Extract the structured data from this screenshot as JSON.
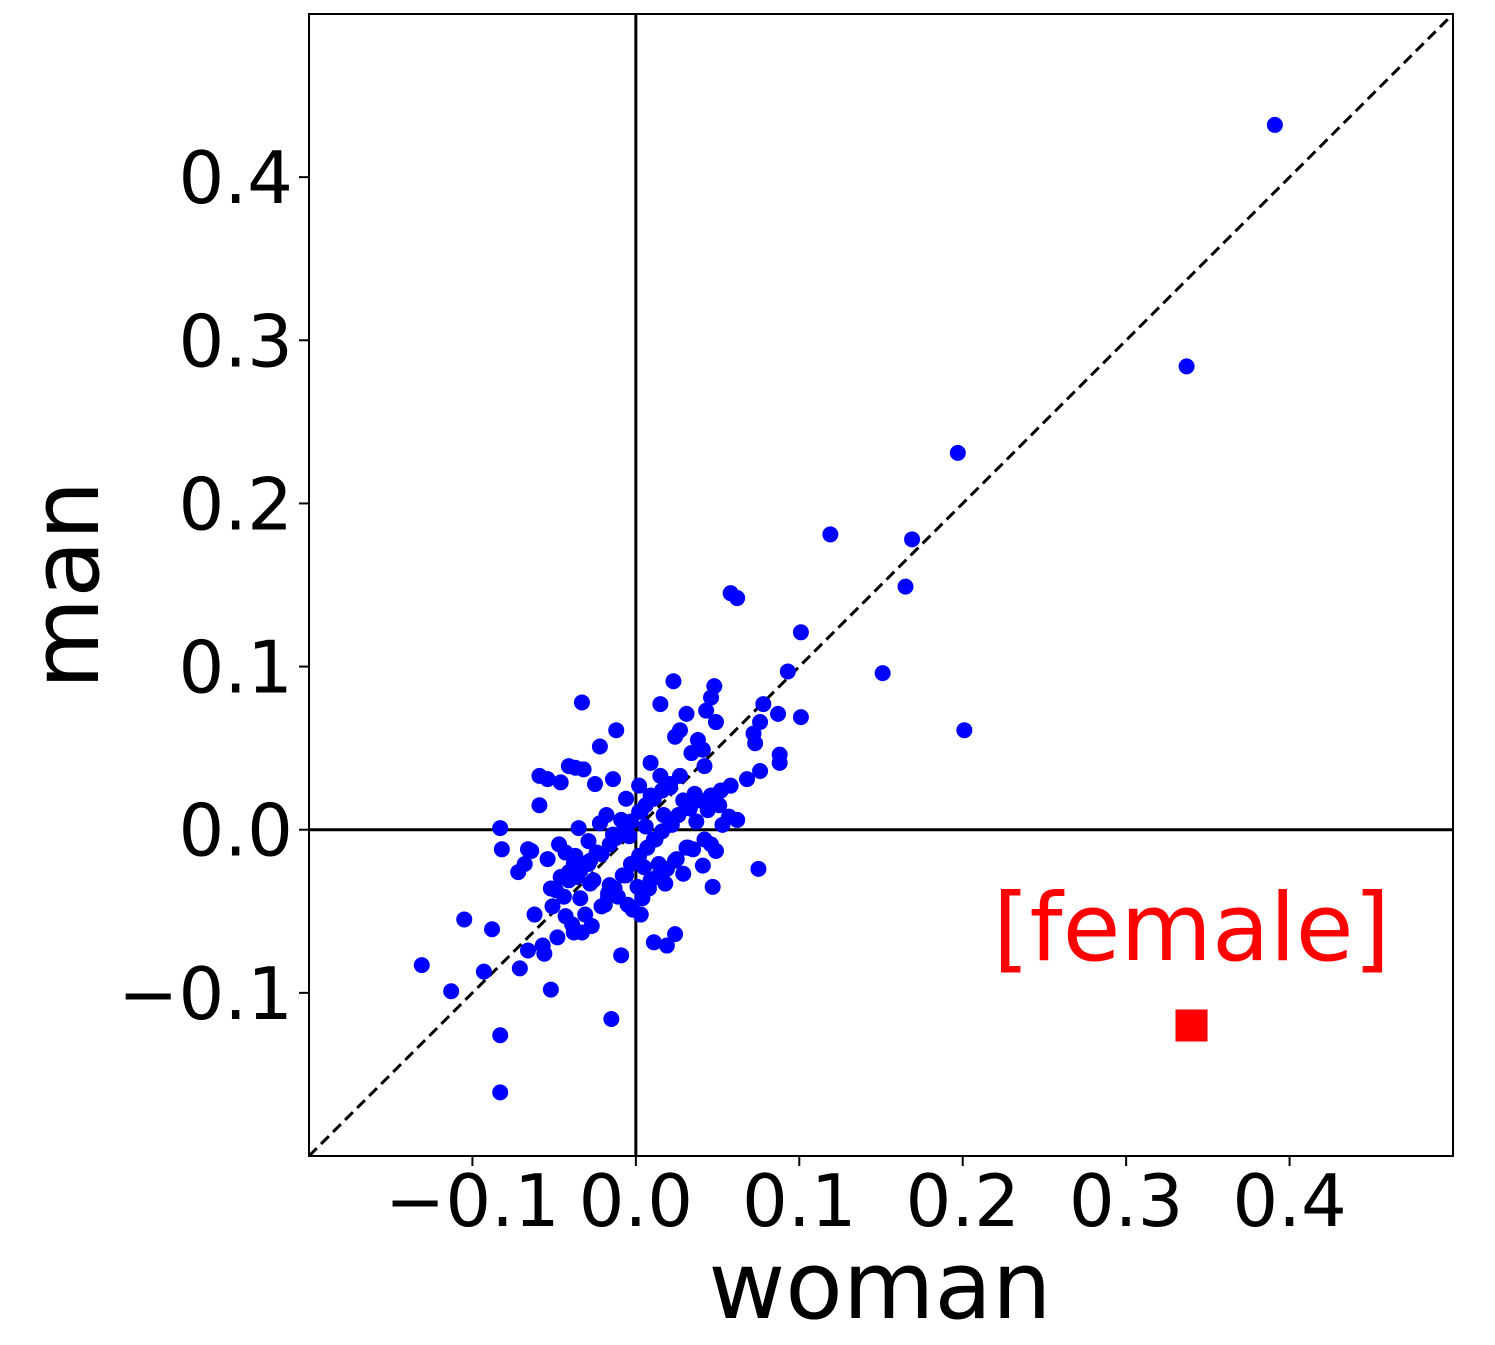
{
  "chart_data": {
    "type": "scatter",
    "title": "",
    "xlabel": "woman",
    "ylabel": "man",
    "xlim": [
      -0.2,
      0.5
    ],
    "ylim": [
      -0.2,
      0.5
    ],
    "xticks": [
      -0.1,
      0.0,
      0.1,
      0.2,
      0.3,
      0.4
    ],
    "yticks": [
      -0.1,
      0.0,
      0.1,
      0.2,
      0.3,
      0.4
    ],
    "xtick_labels": [
      "−0.1",
      "0.0",
      "0.1",
      "0.2",
      "0.3",
      "0.4"
    ],
    "ytick_labels": [
      "−0.1",
      "0.0",
      "0.1",
      "0.2",
      "0.3",
      "0.4"
    ],
    "grid": false,
    "reference_lines": [
      {
        "kind": "vertical",
        "x": 0.0
      },
      {
        "kind": "horizontal",
        "y": 0.0
      },
      {
        "kind": "diagonal",
        "style": "dashed",
        "from": [
          -0.2,
          -0.2
        ],
        "to": [
          0.5,
          0.5
        ]
      }
    ],
    "series": [
      {
        "marker": "circle",
        "color": "#0000ff",
        "x": [
          0.391,
          0.337,
          0.197,
          0.119,
          0.169,
          0.165,
          0.058,
          0.062,
          0.101,
          0.151,
          0.201,
          0.093,
          0.078,
          0.101,
          0.087,
          0.076,
          0.072,
          0.088,
          0.073,
          0.048,
          0.046,
          0.031,
          0.023,
          0.015,
          0.024,
          0.009,
          0.038,
          0.043,
          0.049,
          0.041,
          0.027,
          0.034,
          0.042,
          -0.033,
          -0.012,
          -0.022,
          -0.037,
          -0.041,
          -0.059,
          -0.054,
          -0.046,
          -0.032,
          -0.025,
          -0.014,
          -0.006,
          0.002,
          0.009,
          0.015,
          0.021,
          0.029,
          0.036,
          0.044,
          0.051,
          0.057,
          0.062,
          -0.059,
          -0.064,
          -0.068,
          -0.066,
          -0.072,
          -0.083,
          -0.082,
          -0.054,
          -0.047,
          -0.043,
          -0.038,
          -0.035,
          -0.029,
          -0.022,
          -0.018,
          -0.014,
          -0.009,
          -0.004,
          0.003,
          0.006,
          0.011,
          0.017,
          0.022,
          0.031,
          0.037,
          0.046,
          0.053,
          0.075,
          -0.105,
          -0.088,
          -0.093,
          -0.113,
          -0.131,
          -0.071,
          -0.052,
          -0.066,
          -0.056,
          -0.043,
          -0.038,
          -0.034,
          -0.031,
          -0.026,
          -0.019,
          -0.016,
          -0.011,
          -0.006,
          0.001,
          0.005,
          0.009,
          0.014,
          0.018,
          0.024,
          0.032,
          0.041,
          0.049,
          0.011,
          0.019,
          0.024,
          0.003,
          -0.005,
          -0.017,
          -0.028,
          -0.036,
          -0.044,
          -0.051,
          -0.062,
          -0.057,
          -0.048,
          -0.039,
          -0.033,
          -0.027,
          -0.021,
          -0.017,
          -0.013,
          -0.008,
          -0.003,
          0.002,
          0.007,
          0.012,
          0.016,
          0.021,
          0.026,
          0.033,
          0.039,
          0.046,
          0.052,
          0.058,
          0.068,
          0.076,
          0.088,
          -0.015,
          -0.083,
          -0.083,
          -0.009,
          -0.002,
          0.004,
          0.008,
          0.013,
          0.019,
          0.025,
          0.029,
          0.035,
          0.042,
          0.047,
          -0.024,
          -0.029,
          -0.037,
          -0.041,
          -0.046,
          -0.052,
          -0.049,
          -0.041,
          -0.034,
          -0.028,
          -0.021,
          -0.016,
          -0.012,
          -0.007,
          -0.003,
          0.002,
          0.006,
          0.011,
          0.016,
          0.021,
          0.027
        ],
        "y": [
          0.432,
          0.284,
          0.231,
          0.181,
          0.178,
          0.149,
          0.145,
          0.142,
          0.121,
          0.096,
          0.061,
          0.097,
          0.077,
          0.069,
          0.071,
          0.066,
          0.059,
          0.046,
          0.053,
          0.088,
          0.081,
          0.071,
          0.091,
          0.077,
          0.057,
          0.041,
          0.055,
          0.073,
          0.066,
          0.049,
          0.061,
          0.047,
          0.039,
          0.078,
          0.061,
          0.051,
          0.038,
          0.039,
          0.033,
          0.031,
          0.029,
          0.037,
          0.028,
          0.031,
          0.019,
          0.027,
          0.021,
          0.033,
          0.026,
          0.018,
          0.022,
          0.012,
          0.015,
          0.008,
          0.006,
          0.015,
          -0.013,
          -0.021,
          -0.012,
          -0.026,
          0.001,
          -0.012,
          -0.018,
          -0.009,
          -0.014,
          -0.021,
          0.001,
          -0.007,
          0.004,
          0.009,
          -0.003,
          0.006,
          -0.004,
          0.011,
          0.002,
          -0.006,
          0.009,
          0.003,
          -0.011,
          0.005,
          -0.009,
          0.003,
          -0.024,
          -0.055,
          -0.061,
          -0.087,
          -0.099,
          -0.083,
          -0.085,
          -0.098,
          -0.074,
          -0.076,
          -0.053,
          -0.063,
          -0.042,
          -0.052,
          -0.031,
          -0.046,
          -0.034,
          -0.041,
          -0.028,
          -0.035,
          -0.023,
          -0.031,
          -0.021,
          -0.033,
          -0.019,
          -0.011,
          -0.022,
          -0.013,
          -0.069,
          -0.071,
          -0.064,
          -0.052,
          -0.046,
          -0.039,
          -0.033,
          -0.029,
          -0.041,
          -0.047,
          -0.052,
          -0.071,
          -0.066,
          -0.058,
          -0.063,
          -0.059,
          -0.047,
          -0.041,
          -0.036,
          -0.028,
          -0.021,
          -0.016,
          -0.011,
          -0.006,
          -0.001,
          0.004,
          0.009,
          0.013,
          0.018,
          0.021,
          0.024,
          0.027,
          0.031,
          0.036,
          0.041,
          -0.116,
          -0.126,
          -0.161,
          -0.077,
          -0.049,
          -0.042,
          -0.036,
          -0.029,
          -0.024,
          -0.018,
          -0.027,
          -0.012,
          -0.006,
          -0.035,
          -0.014,
          -0.021,
          -0.016,
          -0.026,
          -0.029,
          -0.036,
          -0.037,
          -0.031,
          -0.025,
          -0.019,
          -0.015,
          -0.009,
          -0.005,
          0.001,
          0.005,
          0.011,
          0.015,
          0.019,
          0.024,
          0.028,
          0.033
        ]
      },
      {
        "name": "[female]",
        "marker": "square",
        "color": "#ff0000",
        "x": [
          0.34
        ],
        "y": [
          -0.12
        ]
      }
    ],
    "annotations": [
      {
        "text": "[female]",
        "x": 0.34,
        "y": -0.08,
        "color": "#ff0000"
      }
    ]
  }
}
